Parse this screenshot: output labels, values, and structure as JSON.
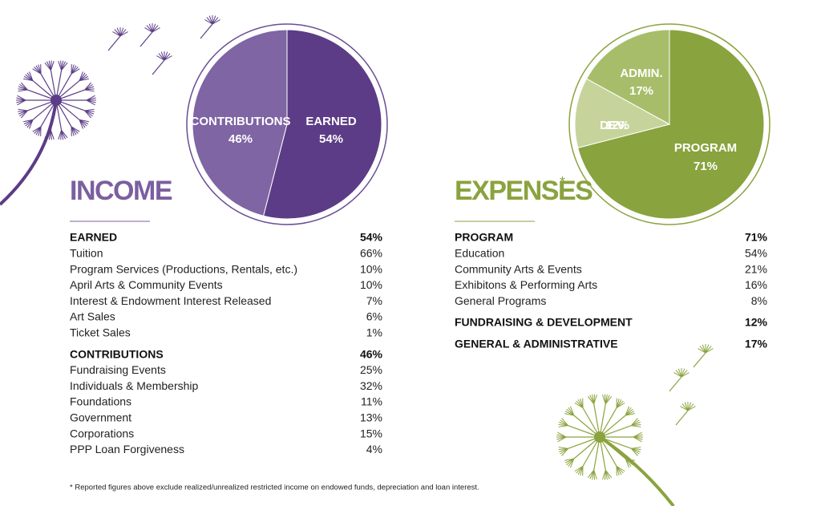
{
  "chart_data": [
    {
      "type": "pie",
      "title": "INCOME",
      "categories": [
        "CONTRIBUTIONS",
        "EARNED"
      ],
      "values": [
        46,
        54
      ],
      "value_labels": [
        "46%",
        "54%"
      ],
      "colors": [
        "#7f65a4",
        "#5c3c86"
      ]
    },
    {
      "type": "pie",
      "title": "EXPENSES",
      "title_note": "*",
      "categories": [
        "PROGRAM",
        "DEV.",
        "ADMIN."
      ],
      "values": [
        71,
        12,
        17
      ],
      "value_labels": [
        "71%",
        "12%",
        "17%"
      ],
      "colors": [
        "#89a33e",
        "#c6d49c",
        "#a8bd69"
      ]
    }
  ],
  "income_table": {
    "sections": [
      {
        "heading": "EARNED",
        "total": "54%",
        "rows": [
          [
            "Tuition",
            "66%"
          ],
          [
            "Program Services (Productions, Rentals, etc.)",
            "10%"
          ],
          [
            "April Arts & Community Events",
            "10%"
          ],
          [
            "Interest & Endowment Interest Released",
            "7%"
          ],
          [
            "Art Sales",
            "6%"
          ],
          [
            "Ticket Sales",
            "1%"
          ]
        ]
      },
      {
        "heading": "CONTRIBUTIONS",
        "total": "46%",
        "rows": [
          [
            "Fundraising Events",
            "25%"
          ],
          [
            "Individuals & Membership",
            "32%"
          ],
          [
            "Foundations",
            "11%"
          ],
          [
            "Government",
            "13%"
          ],
          [
            "Corporations",
            "15%"
          ],
          [
            "PPP Loan Forgiveness",
            "4%"
          ]
        ]
      }
    ]
  },
  "expenses_table": {
    "sections": [
      {
        "heading": "PROGRAM",
        "total": "71%",
        "rows": [
          [
            "Education",
            "54%"
          ],
          [
            "Community Arts & Events",
            "21%"
          ],
          [
            "Exhibitons & Performing Arts",
            "16%"
          ],
          [
            "General Programs",
            "8%"
          ]
        ]
      },
      {
        "heading": "FUNDRAISING & DEVELOPMENT",
        "total": "12%",
        "rows": []
      },
      {
        "heading": "GENERAL & ADMINISTRATIVE",
        "total": "17%",
        "rows": []
      }
    ]
  },
  "footnote": "* Reported figures above exclude realized/unrealized restricted income on endowed funds, depreciation and loan interest."
}
